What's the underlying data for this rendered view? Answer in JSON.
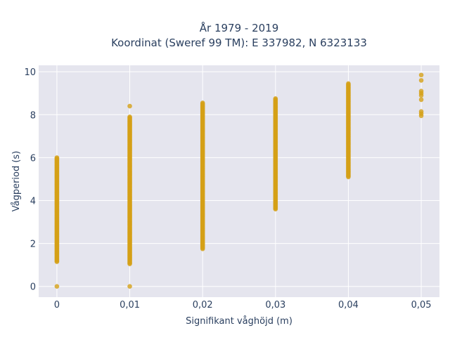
{
  "chart_data": {
    "type": "scatter",
    "title_line1": "År 1979 - 2019",
    "title_line2": "Koordinat (Sweref 99 TM): E 337982, N 6323133",
    "xlabel": "Signifikant våghöjd (m)",
    "ylabel": "Vågperiod (s)",
    "xlim": [
      -0.0025,
      0.0525
    ],
    "ylim": [
      -0.5,
      10.3
    ],
    "x_ticks": [
      0,
      0.01,
      0.02,
      0.03,
      0.04,
      0.05
    ],
    "x_tick_labels": [
      "0",
      "0,01",
      "0,02",
      "0,03",
      "0,04",
      "0,05"
    ],
    "y_ticks": [
      0,
      2,
      4,
      6,
      8,
      10
    ],
    "y_tick_labels": [
      "0",
      "2",
      "4",
      "6",
      "8",
      "10"
    ],
    "grid": true,
    "legend": "none",
    "colors": {
      "marker": "#d4a017",
      "plot_bg": "#e5e5ee",
      "grid": "#ffffff",
      "text": "#2a3f5f"
    },
    "columns": [
      {
        "x": 0.0,
        "y_min": 1.15,
        "y_max": 6.0,
        "extra_y": [
          0.0
        ]
      },
      {
        "x": 0.01,
        "y_min": 1.05,
        "y_max": 7.9,
        "extra_y": [
          0.0,
          8.4
        ]
      },
      {
        "x": 0.02,
        "y_min": 1.75,
        "y_max": 8.55,
        "extra_y": [
          2.0
        ]
      },
      {
        "x": 0.03,
        "y_min": 3.6,
        "y_max": 8.75,
        "extra_y": []
      },
      {
        "x": 0.04,
        "y_min": 5.1,
        "y_max": 9.45,
        "extra_y": []
      },
      {
        "x": 0.05,
        "y_min": null,
        "y_max": null,
        "extra_y": [
          7.95,
          8.05,
          8.15,
          8.7,
          8.9,
          9.0,
          9.1,
          9.6,
          9.85
        ]
      }
    ]
  }
}
